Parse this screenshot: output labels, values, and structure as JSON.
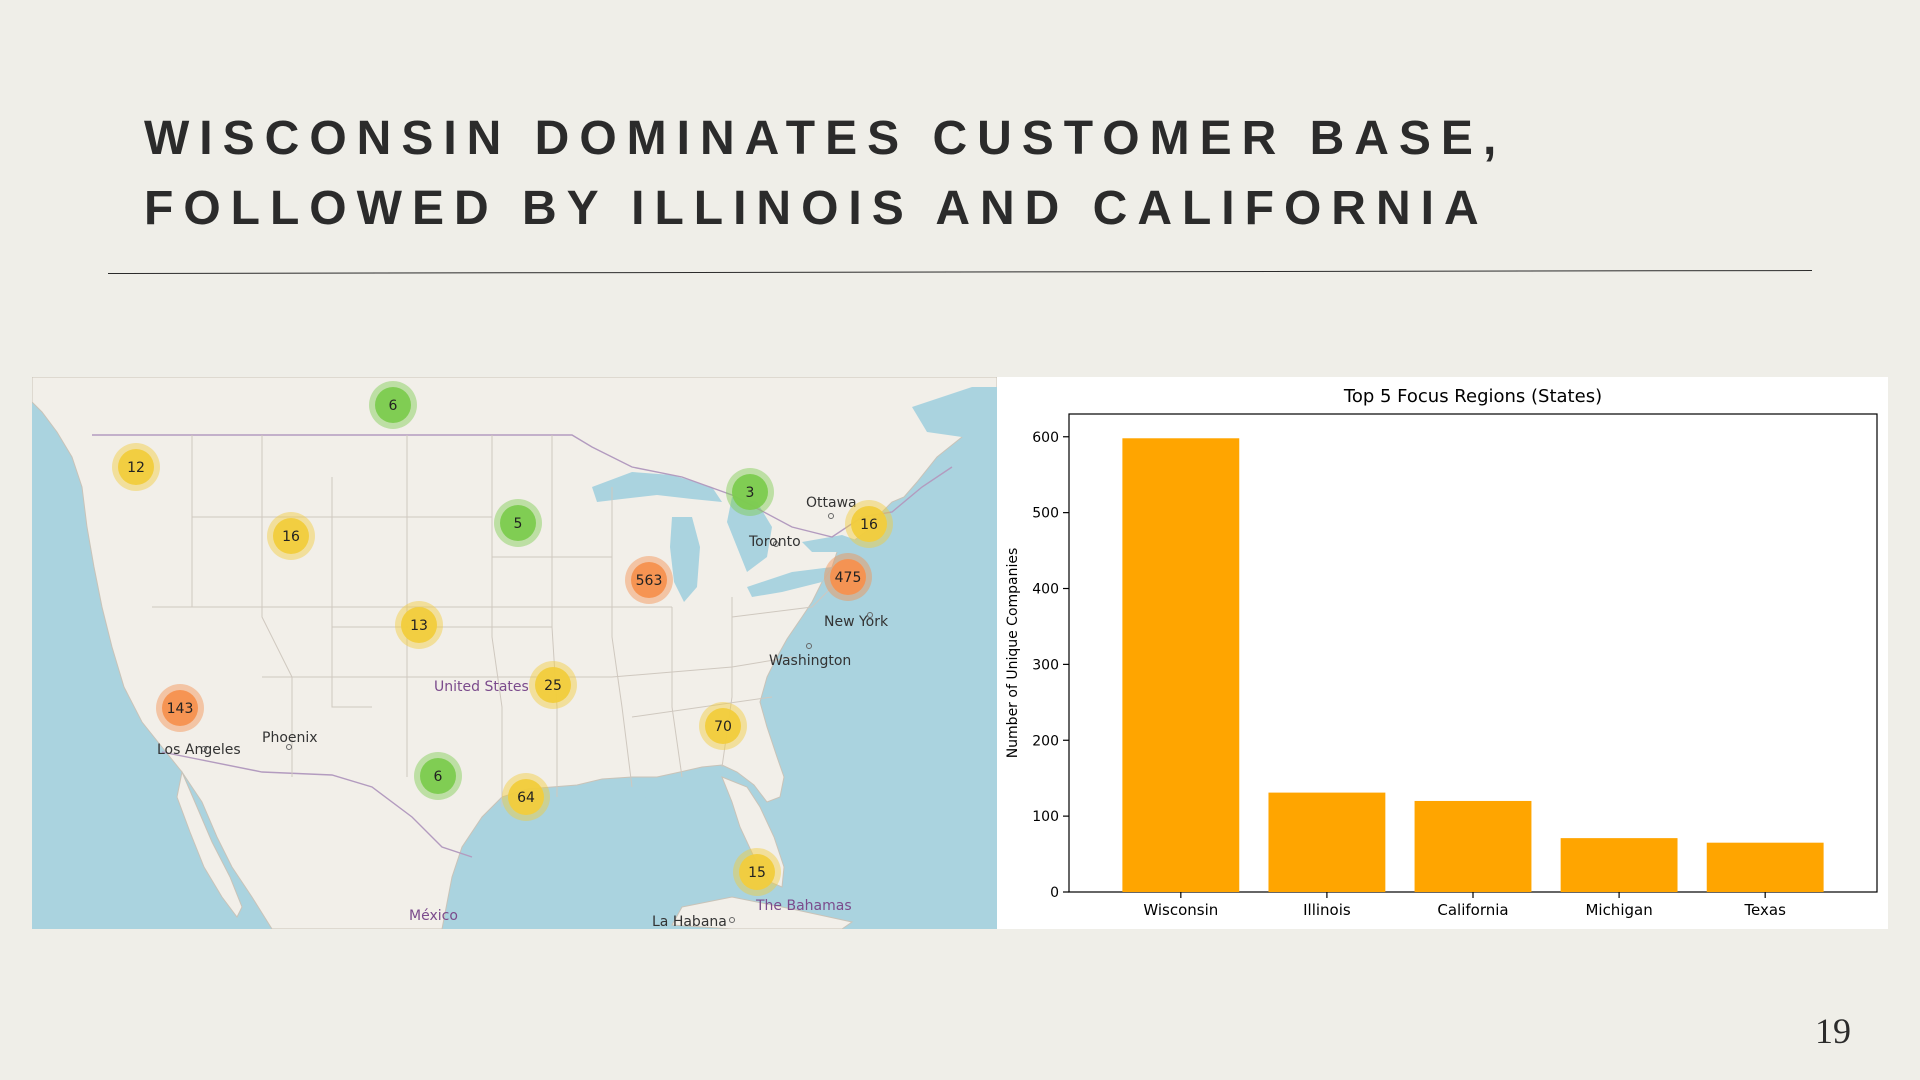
{
  "slide": {
    "title_line1": "WISCONSIN DOMINATES CUSTOMER BASE,",
    "title_line2": "FOLLOWED BY ILLINOIS AND CALIFORNIA",
    "page_number": "19"
  },
  "map": {
    "clusters": [
      {
        "label": "6",
        "level": "green"
      },
      {
        "label": "12",
        "level": "yellow"
      },
      {
        "label": "16",
        "level": "yellow"
      },
      {
        "label": "5",
        "level": "green"
      },
      {
        "label": "3",
        "level": "green"
      },
      {
        "label": "16",
        "level": "yellow"
      },
      {
        "label": "563",
        "level": "orange"
      },
      {
        "label": "475",
        "level": "orange"
      },
      {
        "label": "13",
        "level": "yellow"
      },
      {
        "label": "25",
        "level": "yellow"
      },
      {
        "label": "143",
        "level": "orange"
      },
      {
        "label": "70",
        "level": "yellow"
      },
      {
        "label": "6",
        "level": "green"
      },
      {
        "label": "64",
        "level": "yellow"
      },
      {
        "label": "15",
        "level": "yellow"
      }
    ],
    "labels": {
      "ottawa": "Ottawa",
      "toronto": "Toronto",
      "new_york": "New York",
      "washington": "Washington",
      "united_states": "United States",
      "phoenix": "Phoenix",
      "los_angeles": "Los Angeles",
      "mexico": "México",
      "la_habana": "La Habana",
      "the_bahamas": "The Bahamas"
    },
    "colors": {
      "green": "#7ccb4f",
      "yellow": "#f1cc3c",
      "orange": "#f5914f",
      "water": "#aad3df",
      "land": "#f2efe9"
    }
  },
  "chart_data": {
    "type": "bar",
    "title": "Top 5 Focus Regions (States)",
    "xlabel": "",
    "ylabel": "Number of Unique Companies",
    "categories": [
      "Wisconsin",
      "Illinois",
      "California",
      "Michigan",
      "Texas"
    ],
    "values": [
      598,
      131,
      120,
      71,
      65
    ],
    "ylim": [
      0,
      630
    ],
    "yticks": [
      0,
      100,
      200,
      300,
      400,
      500,
      600
    ],
    "bar_color": "#ffa500",
    "grid": false
  }
}
